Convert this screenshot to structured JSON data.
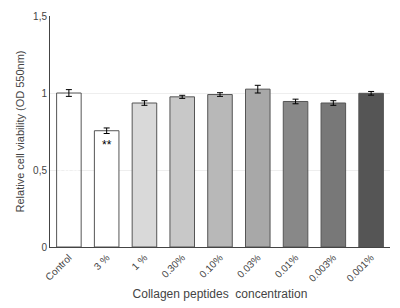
{
  "chart_data": {
    "type": "bar",
    "categories": [
      "Control",
      "3 %",
      "1 %",
      "0.30%",
      "0.10%",
      "0.03%",
      "0.01%",
      "0.003%",
      "0.001%"
    ],
    "values": [
      1.0,
      0.755,
      0.935,
      0.975,
      0.99,
      1.025,
      0.945,
      0.935,
      0.998
    ],
    "errors": [
      0.022,
      0.018,
      0.015,
      0.01,
      0.012,
      0.025,
      0.015,
      0.015,
      0.012
    ],
    "colors": [
      "#ffffff",
      "#ffffff",
      "#d9d9d9",
      "#c8c8c8",
      "#b8b8b8",
      "#a8a8a8",
      "#888888",
      "#787878",
      "#555555"
    ],
    "xlabel": "Collagen peptides  concentration",
    "ylabel": "Relative cell viability (OD 550nm)",
    "ylim": [
      0,
      1.5
    ],
    "yticks": [
      0,
      {
        "value": 0.5,
        "label": "0,5"
      },
      1,
      {
        "value": 1.5,
        "label": "1,5"
      }
    ],
    "grid": true,
    "annotations": [
      {
        "category": "3 %",
        "text": "**"
      }
    ]
  }
}
